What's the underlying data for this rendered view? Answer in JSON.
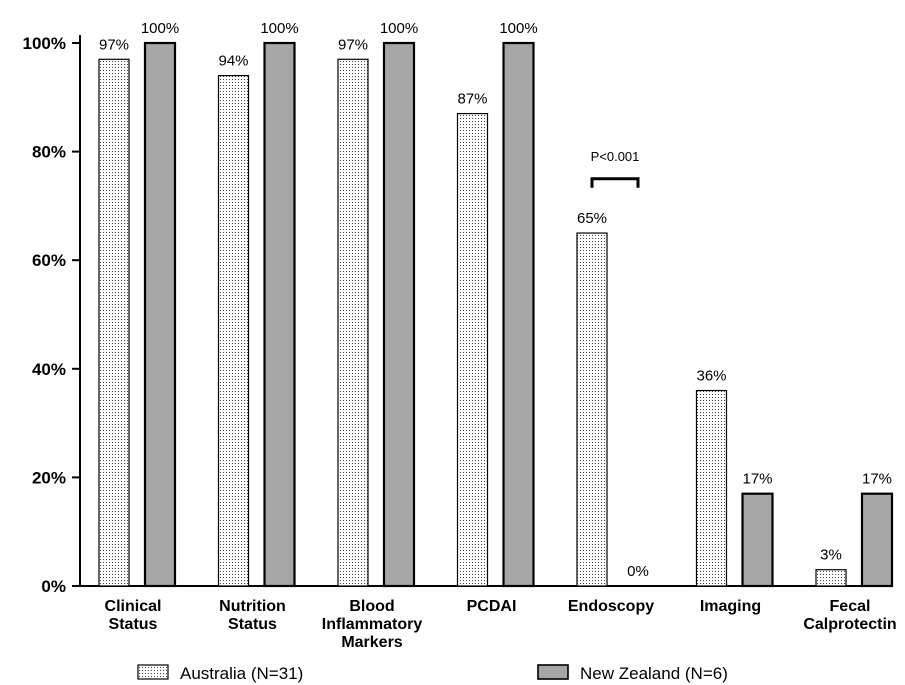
{
  "chart_data": {
    "type": "bar",
    "title": "",
    "xlabel": "",
    "ylabel": "",
    "ylim": [
      0,
      100
    ],
    "y_ticks": [
      "0%",
      "20%",
      "40%",
      "60%",
      "80%",
      "100%"
    ],
    "grid": false,
    "legend_position": "bottom",
    "categories": [
      [
        "Clinical",
        "Status"
      ],
      [
        "Nutrition",
        "Status"
      ],
      [
        "Blood",
        "Inflammatory",
        "Markers"
      ],
      [
        "PCDAI"
      ],
      [
        "Endoscopy"
      ],
      [
        "Imaging"
      ],
      [
        "Fecal",
        "Calprotectin"
      ]
    ],
    "series": [
      {
        "name": "Australia (N=31)",
        "values": [
          97,
          94,
          97,
          87,
          65,
          36,
          3
        ],
        "labels": [
          "97%",
          "94%",
          "97%",
          "87%",
          "65%",
          "36%",
          "3%"
        ],
        "fill": "dotted",
        "color": "#ffffff"
      },
      {
        "name": "New Zealand (N=6)",
        "values": [
          100,
          100,
          100,
          100,
          0,
          17,
          17
        ],
        "labels": [
          "100%",
          "100%",
          "100%",
          "100%",
          "0%",
          "17%",
          "17%"
        ],
        "fill": "solid",
        "color": "#a6a6a6"
      }
    ],
    "annotations": [
      {
        "text": "P<0.001",
        "category_index": 4
      }
    ]
  }
}
